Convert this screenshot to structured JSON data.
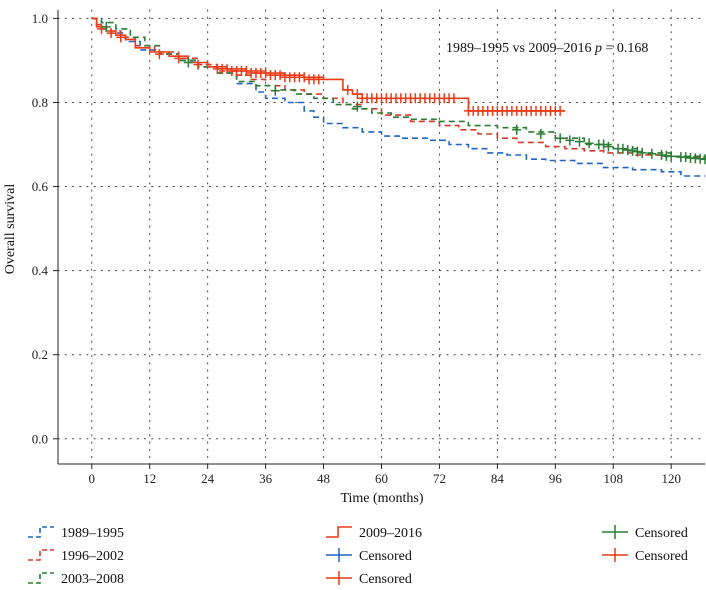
{
  "chart_data": {
    "type": "line",
    "subtype": "kaplan-meier",
    "xlabel": "Time (months)",
    "ylabel": "Overall survival",
    "xlim": [
      -7,
      127
    ],
    "ylim": [
      -0.06,
      1.02
    ],
    "xticks": [
      0,
      12,
      24,
      36,
      48,
      60,
      72,
      84,
      96,
      108,
      120
    ],
    "yticks": [
      0.0,
      0.2,
      0.4,
      0.6,
      0.8,
      1.0
    ],
    "ytick_labels": [
      "0.0",
      "0.2",
      "0.4",
      "0.6",
      "0.8",
      "1.0"
    ],
    "grid": "dotted",
    "annotation": {
      "prefix": "1989–1995 vs 2009–2016 ",
      "p_symbol": "p",
      "suffix": " = 0.168",
      "anchor": [
        100,
        0.95
      ]
    },
    "series": [
      {
        "name": "1989–1995",
        "color": "#2166c2",
        "style": "dashed",
        "x": [
          0,
          1,
          2,
          4,
          7,
          10,
          14,
          18,
          22,
          26,
          30,
          34,
          36,
          40,
          44,
          46,
          48,
          52,
          56,
          60,
          64,
          70,
          74,
          78,
          82,
          86,
          90,
          94,
          100,
          106,
          112,
          118,
          122,
          127
        ],
        "y": [
          1.0,
          0.985,
          0.975,
          0.965,
          0.945,
          0.925,
          0.915,
          0.9,
          0.885,
          0.87,
          0.845,
          0.825,
          0.81,
          0.8,
          0.78,
          0.765,
          0.75,
          0.74,
          0.73,
          0.72,
          0.715,
          0.71,
          0.7,
          0.69,
          0.68,
          0.675,
          0.665,
          0.662,
          0.655,
          0.645,
          0.64,
          0.635,
          0.625,
          0.625
        ],
        "censored_x": [],
        "censored_y": []
      },
      {
        "name": "1996–2002",
        "color": "#d33a2c",
        "style": "dashed",
        "x": [
          0,
          1,
          3,
          6,
          9,
          13,
          18,
          22,
          26,
          30,
          33,
          36,
          40,
          44,
          48,
          52,
          56,
          60,
          66,
          72,
          76,
          80,
          84,
          88,
          94,
          98,
          102,
          106,
          112,
          118,
          122,
          127
        ],
        "y": [
          1.0,
          0.985,
          0.97,
          0.955,
          0.935,
          0.92,
          0.905,
          0.89,
          0.875,
          0.865,
          0.855,
          0.84,
          0.83,
          0.82,
          0.81,
          0.795,
          0.785,
          0.77,
          0.755,
          0.745,
          0.735,
          0.725,
          0.715,
          0.705,
          0.695,
          0.69,
          0.685,
          0.68,
          0.675,
          0.672,
          0.67,
          0.67
        ],
        "censored_x": [],
        "censored_y": []
      },
      {
        "name": "2003–2008",
        "color": "#2a7d33",
        "style": "dashed",
        "x": [
          0,
          2,
          5,
          8,
          11,
          14,
          18,
          22,
          26,
          30,
          34,
          38,
          42,
          46,
          50,
          54,
          58,
          62,
          66,
          72,
          78,
          84,
          90,
          96,
          102,
          108,
          114,
          120,
          127
        ],
        "y": [
          1.0,
          0.99,
          0.975,
          0.955,
          0.935,
          0.915,
          0.9,
          0.885,
          0.87,
          0.85,
          0.84,
          0.83,
          0.82,
          0.81,
          0.795,
          0.785,
          0.775,
          0.765,
          0.76,
          0.755,
          0.745,
          0.74,
          0.73,
          0.715,
          0.7,
          0.69,
          0.68,
          0.672,
          0.665
        ],
        "censored_x": [
          3,
          20,
          38,
          55,
          88,
          93,
          97,
          99,
          101,
          103,
          105,
          106,
          107,
          109,
          110,
          111,
          112,
          113,
          114,
          116,
          118,
          119,
          120,
          122,
          123,
          124,
          125,
          126,
          127
        ],
        "censored_y": [
          0.98,
          0.895,
          0.828,
          0.79,
          0.735,
          0.725,
          0.715,
          0.71,
          0.707,
          0.703,
          0.7,
          0.7,
          0.695,
          0.69,
          0.69,
          0.687,
          0.685,
          0.683,
          0.68,
          0.678,
          0.675,
          0.673,
          0.672,
          0.67,
          0.67,
          0.668,
          0.667,
          0.666,
          0.665
        ]
      },
      {
        "name": "2009–2016",
        "color": "#ea3a17",
        "style": "solid",
        "x": [
          0,
          1,
          3,
          5,
          7,
          9,
          12,
          16,
          20,
          24,
          28,
          32,
          36,
          40,
          44,
          48,
          52,
          54,
          56,
          60,
          64,
          76,
          78,
          96,
          98
        ],
        "y": [
          1.0,
          0.98,
          0.97,
          0.96,
          0.95,
          0.93,
          0.92,
          0.91,
          0.895,
          0.885,
          0.88,
          0.875,
          0.87,
          0.865,
          0.86,
          0.855,
          0.83,
          0.82,
          0.81,
          0.81,
          0.81,
          0.81,
          0.78,
          0.78,
          0.78
        ],
        "censored_x": [
          2,
          4,
          6,
          14,
          18,
          22,
          26,
          27,
          28,
          29,
          30,
          31,
          32,
          33,
          34,
          35,
          36,
          37,
          38,
          39,
          40,
          41,
          42,
          43,
          44,
          45,
          46,
          47,
          53,
          55,
          56,
          57,
          58,
          59,
          60,
          61,
          62,
          63,
          64,
          65,
          66,
          67,
          68,
          69,
          70,
          71,
          72,
          73,
          74,
          75,
          78,
          79,
          80,
          81,
          82,
          83,
          84,
          85,
          86,
          87,
          88,
          89,
          90,
          91,
          92,
          93,
          94,
          95,
          96,
          97
        ],
        "censored_y": [
          0.975,
          0.965,
          0.955,
          0.915,
          0.905,
          0.89,
          0.88,
          0.88,
          0.88,
          0.875,
          0.875,
          0.875,
          0.875,
          0.87,
          0.87,
          0.87,
          0.87,
          0.865,
          0.865,
          0.865,
          0.86,
          0.86,
          0.86,
          0.86,
          0.86,
          0.855,
          0.855,
          0.855,
          0.83,
          0.82,
          0.81,
          0.81,
          0.81,
          0.81,
          0.81,
          0.81,
          0.81,
          0.81,
          0.81,
          0.81,
          0.81,
          0.81,
          0.81,
          0.81,
          0.81,
          0.81,
          0.81,
          0.81,
          0.81,
          0.81,
          0.78,
          0.78,
          0.78,
          0.78,
          0.78,
          0.78,
          0.78,
          0.78,
          0.78,
          0.78,
          0.78,
          0.78,
          0.78,
          0.78,
          0.78,
          0.78,
          0.78,
          0.78,
          0.78,
          0.78
        ]
      }
    ],
    "legend": {
      "placement": "bottom",
      "items": [
        {
          "label": "1989–1995",
          "kind": "step",
          "style": "dashed",
          "color": "#2166c2"
        },
        {
          "label": "1996–2002",
          "kind": "step",
          "style": "dashed",
          "color": "#d33a2c"
        },
        {
          "label": "2003–2008",
          "kind": "step",
          "style": "dashed",
          "color": "#2a7d33"
        },
        {
          "label": "2009–2016",
          "kind": "step",
          "style": "solid",
          "color": "#ea3a17"
        },
        {
          "label": "Censored",
          "kind": "plus",
          "color": "#2166c2"
        },
        {
          "label": "Censored",
          "kind": "plus",
          "color": "#ea3a17"
        },
        {
          "label": "Censored",
          "kind": "plus",
          "color": "#2a7d33"
        },
        {
          "label": "Censored",
          "kind": "plus",
          "color": "#ea3a17"
        }
      ]
    }
  }
}
